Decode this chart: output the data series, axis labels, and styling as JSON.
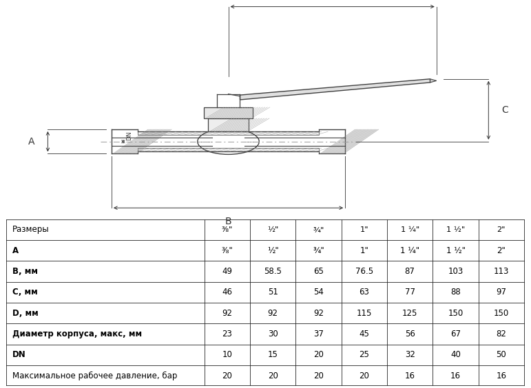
{
  "table_header": [
    "Размеры",
    "³⁄₈\"",
    "½\"",
    "¾\"",
    "1\"",
    "1 ¼\"",
    "1 ½\"",
    "2\""
  ],
  "rows": [
    {
      "label": "A",
      "bold": true,
      "values": [
        "³⁄₈\"",
        "½\"",
        "¾\"",
        "1\"",
        "1 ¼\"",
        "1 ½\"",
        "2\""
      ]
    },
    {
      "label": "B, мм",
      "bold": true,
      "values": [
        "49",
        "58.5",
        "65",
        "76.5",
        "87",
        "103",
        "113"
      ]
    },
    {
      "label": "C, мм",
      "bold": true,
      "values": [
        "46",
        "51",
        "54",
        "63",
        "77",
        "88",
        "97"
      ]
    },
    {
      "label": "D, мм",
      "bold": true,
      "values": [
        "92",
        "92",
        "92",
        "115",
        "125",
        "150",
        "150"
      ]
    },
    {
      "label": "Диаметр корпуса, макс, мм",
      "bold": true,
      "values": [
        "23",
        "30",
        "37",
        "45",
        "56",
        "67",
        "82"
      ]
    },
    {
      "label": "DN",
      "bold": true,
      "values": [
        "10",
        "15",
        "20",
        "25",
        "32",
        "40",
        "50"
      ]
    },
    {
      "label": "Максимальное рабочее давление, бар",
      "bold": false,
      "values": [
        "20",
        "20",
        "20",
        "20",
        "16",
        "16",
        "16"
      ]
    }
  ],
  "diagram_bg": "#ffffff",
  "line_color": "#404040",
  "hatch_color": "#888888",
  "dim_color": "#333333"
}
